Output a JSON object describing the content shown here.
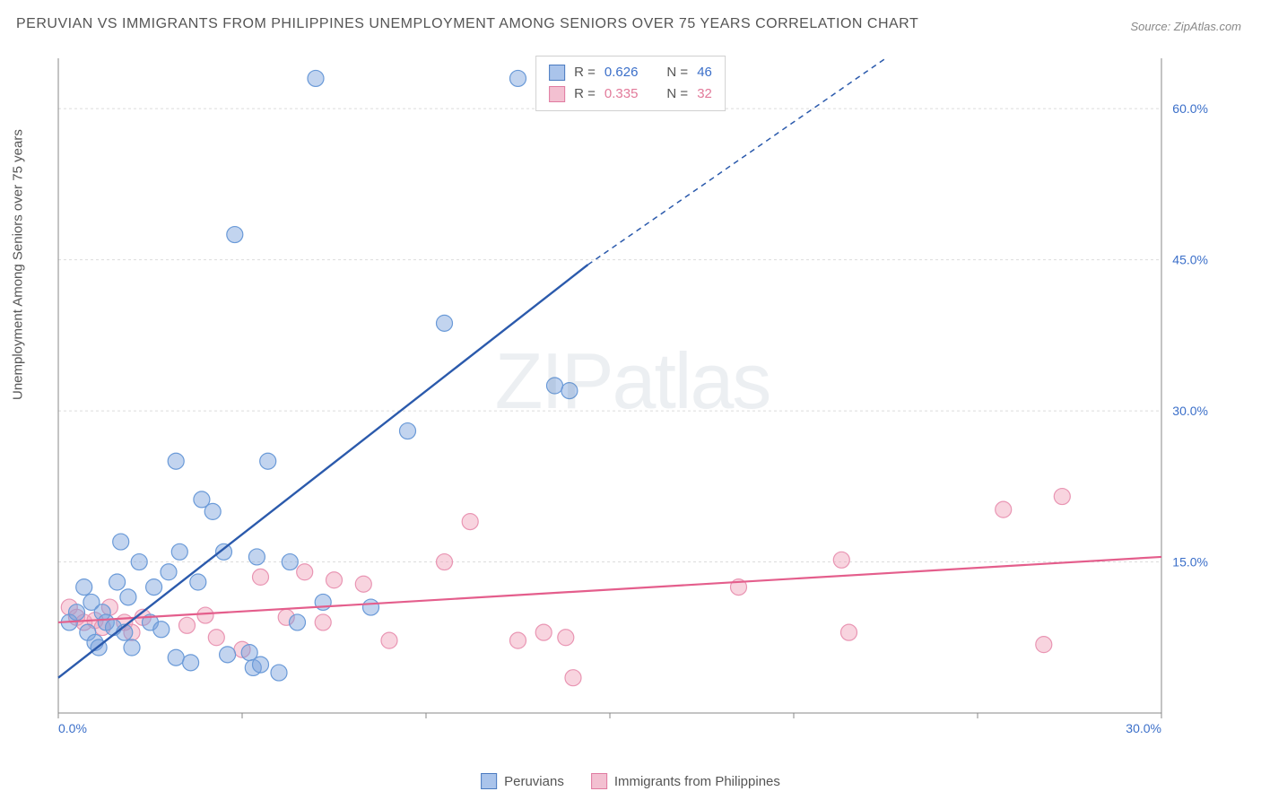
{
  "title": "PERUVIAN VS IMMIGRANTS FROM PHILIPPINES UNEMPLOYMENT AMONG SENIORS OVER 75 YEARS CORRELATION CHART",
  "source": "Source: ZipAtlas.com",
  "watermark": "ZIPatlas",
  "ylabel": "Unemployment Among Seniors over 75 years",
  "chart": {
    "type": "scatter",
    "xlim": [
      0,
      30
    ],
    "ylim": [
      0,
      65
    ],
    "background_color": "#ffffff",
    "grid_color": "#dcdcdc",
    "axis_color": "#888888",
    "xticks": [
      0,
      5,
      10,
      15,
      20,
      25,
      30
    ],
    "xtick_labels": [
      "0.0%",
      "",
      "",
      "",
      "",
      "",
      "30.0%"
    ],
    "yticks": [
      15,
      30,
      45,
      60
    ],
    "ytick_labels": [
      "15.0%",
      "30.0%",
      "45.0%",
      "60.0%"
    ],
    "xtick_color": "#3b6fc9",
    "ytick_color": "#3b6fc9",
    "series": [
      {
        "name": "Peruvians",
        "color_fill": "rgba(120,160,220,0.45)",
        "color_stroke": "#6a9ad8",
        "swatch_fill": "#aac4eb",
        "swatch_stroke": "#4a7ac0",
        "r_label": "R =",
        "r_value": "0.626",
        "n_label": "N =",
        "n_value": "46",
        "reg_line": {
          "x1": 0,
          "y1": 3.5,
          "x2": 14.4,
          "y2": 44.5,
          "x2_ext": 22.5,
          "y2_ext": 65,
          "color": "#2b5aac",
          "width": 2.4
        },
        "points": [
          [
            0.3,
            9
          ],
          [
            0.5,
            10
          ],
          [
            0.8,
            8
          ],
          [
            0.9,
            11
          ],
          [
            1.0,
            7
          ],
          [
            1.2,
            10
          ],
          [
            1.3,
            9
          ],
          [
            1.5,
            8.5
          ],
          [
            1.6,
            13
          ],
          [
            1.8,
            8
          ],
          [
            1.9,
            11.5
          ],
          [
            2.2,
            15
          ],
          [
            1.7,
            17
          ],
          [
            2.5,
            9
          ],
          [
            2.6,
            12.5
          ],
          [
            3.0,
            14
          ],
          [
            3.2,
            5.5
          ],
          [
            3.3,
            16
          ],
          [
            3.6,
            5
          ],
          [
            3.8,
            13
          ],
          [
            3.9,
            21.2
          ],
          [
            4.2,
            20
          ],
          [
            4.5,
            16
          ],
          [
            4.6,
            5.8
          ],
          [
            5.2,
            6
          ],
          [
            5.3,
            4.5
          ],
          [
            5.5,
            4.8
          ],
          [
            5.4,
            15.5
          ],
          [
            5.7,
            25
          ],
          [
            6.0,
            4
          ],
          [
            6.3,
            15
          ],
          [
            6.5,
            9
          ],
          [
            7.2,
            11
          ],
          [
            8.5,
            10.5
          ],
          [
            4.8,
            47.5
          ],
          [
            3.2,
            25
          ],
          [
            9.5,
            28
          ],
          [
            10.5,
            38.7
          ],
          [
            12.5,
            63
          ],
          [
            13.5,
            32.5
          ],
          [
            13.9,
            32
          ],
          [
            7.0,
            63
          ],
          [
            0.7,
            12.5
          ],
          [
            1.1,
            6.5
          ],
          [
            2.0,
            6.5
          ],
          [
            2.8,
            8.3
          ]
        ]
      },
      {
        "name": "Immigrants from Philippines",
        "color_fill": "rgba(240,160,185,0.45)",
        "color_stroke": "#e995b3",
        "swatch_fill": "#f3c0d1",
        "swatch_stroke": "#e07aa0",
        "r_label": "R =",
        "r_value": "0.335",
        "n_label": "N =",
        "n_value": "32",
        "reg_line": {
          "x1": 0,
          "y1": 9,
          "x2": 30,
          "y2": 15.5,
          "color": "#e45e8c",
          "width": 2.2
        },
        "points": [
          [
            0.3,
            10.5
          ],
          [
            0.5,
            9.5
          ],
          [
            0.7,
            9
          ],
          [
            1.0,
            9.2
          ],
          [
            1.2,
            8.5
          ],
          [
            1.4,
            10.5
          ],
          [
            1.8,
            9
          ],
          [
            2.3,
            9.5
          ],
          [
            2.0,
            8
          ],
          [
            3.5,
            8.7
          ],
          [
            4.0,
            9.7
          ],
          [
            4.3,
            7.5
          ],
          [
            5.0,
            6.3
          ],
          [
            5.5,
            13.5
          ],
          [
            6.2,
            9.5
          ],
          [
            6.7,
            14
          ],
          [
            7.2,
            9
          ],
          [
            7.5,
            13.2
          ],
          [
            8.3,
            12.8
          ],
          [
            9.0,
            7.2
          ],
          [
            10.5,
            15
          ],
          [
            11.2,
            19
          ],
          [
            12.5,
            7.2
          ],
          [
            13.2,
            8
          ],
          [
            13.8,
            7.5
          ],
          [
            14.0,
            3.5
          ],
          [
            18.5,
            12.5
          ],
          [
            21.3,
            15.2
          ],
          [
            21.5,
            8
          ],
          [
            25.7,
            20.2
          ],
          [
            26.8,
            6.8
          ],
          [
            27.3,
            21.5
          ]
        ]
      }
    ]
  },
  "legend_bottom": {
    "item1": "Peruvians",
    "item2": "Immigrants from Philippines"
  }
}
